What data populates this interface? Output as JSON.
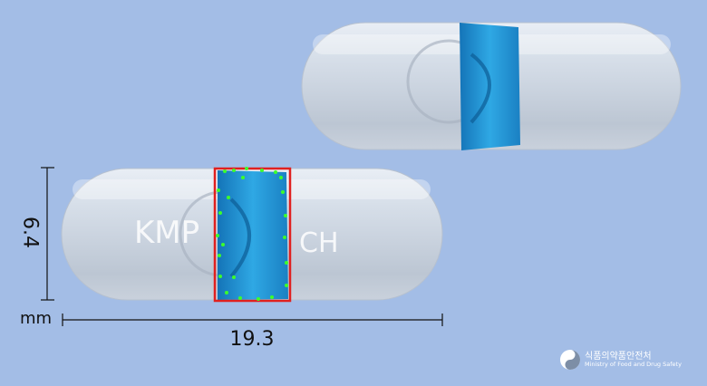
{
  "image": {
    "kind": "capsule-photo",
    "background_color": "#a3bde6",
    "highlight_color": "#e0201f",
    "marker_color": "#3dff2a"
  },
  "capsule": {
    "imprint_left": "KMP",
    "imprint_right": "CH",
    "band_color": "#1e8fd0"
  },
  "dimensions": {
    "length": "19.3",
    "width": "6.4",
    "unit": "mm"
  },
  "logo": {
    "korean": "식품의약품안전처",
    "english": "Ministry of Food and Drug Safety"
  }
}
